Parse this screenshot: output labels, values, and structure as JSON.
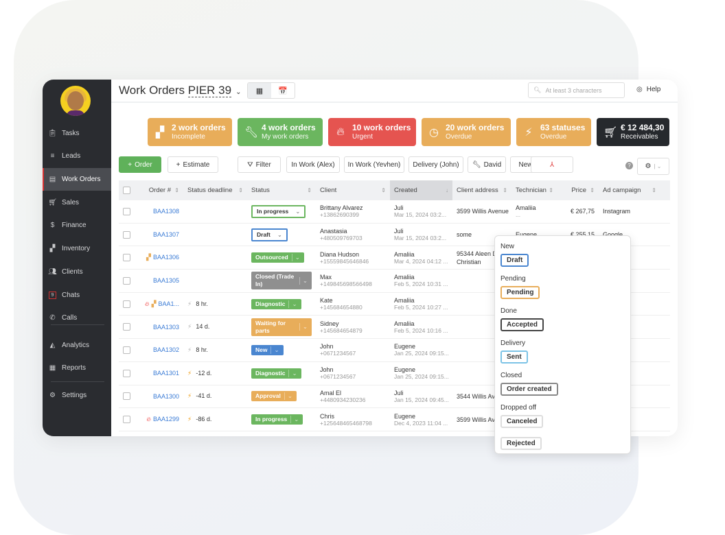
{
  "sidebar": {
    "items": [
      {
        "label": "Tasks",
        "icon": "clipboard-icon"
      },
      {
        "label": "Leads",
        "icon": "filter-icon"
      },
      {
        "label": "Work Orders",
        "icon": "inbox-icon",
        "active": true
      },
      {
        "label": "Sales",
        "icon": "cart-icon"
      },
      {
        "label": "Finance",
        "icon": "dollar-icon"
      },
      {
        "label": "Inventory",
        "icon": "boxes-icon"
      },
      {
        "label": "Clients",
        "icon": "users-icon"
      },
      {
        "label": "Chats",
        "icon": "chat-icon",
        "badge": "9"
      },
      {
        "label": "Calls",
        "icon": "phone-icon"
      },
      {
        "label": "Analytics",
        "icon": "chart-icon"
      },
      {
        "label": "Reports",
        "icon": "table-icon"
      },
      {
        "label": "Settings",
        "icon": "gear-icon"
      }
    ]
  },
  "header": {
    "title": "Work Orders",
    "location": "PIER 39",
    "search_placeholder": "At least 3 characters",
    "help": "Help"
  },
  "kpis": [
    {
      "n": "2 work orders",
      "s": "Incomplete",
      "color": "#e8ad5a",
      "icon": "boxes-icon"
    },
    {
      "n": "4 work orders",
      "s": "My work orders",
      "color": "#6bb65f",
      "icon": "wrench-icon"
    },
    {
      "n": "10 work orders",
      "s": "Urgent",
      "color": "#e55450",
      "icon": "fire-icon"
    },
    {
      "n": "20 work orders",
      "s": "Overdue",
      "color": "#e8ad5a",
      "icon": "clock-icon"
    },
    {
      "n": "63 statuses",
      "s": "Overdue",
      "color": "#e8ad5a",
      "icon": "lightning-icon"
    },
    {
      "n": "€ 12 484,30",
      "s": "Receivables",
      "color": "#26292d",
      "icon": "cart-icon"
    }
  ],
  "toolbar": {
    "order": "Order",
    "estimate": "Estimate",
    "filter": "Filter",
    "filters": [
      "In Work (Alex)",
      "In Work (Yevhen)",
      "Delivery (John)",
      "David",
      "New"
    ]
  },
  "table": {
    "columns": [
      "Order #",
      "Status deadline",
      "Status",
      "Client",
      "Created",
      "Client address",
      "Technician",
      "Price",
      "Ad campaign"
    ],
    "rows": [
      {
        "order": "BAA1308",
        "deadline": "",
        "status": "In progress",
        "style": "outline-green",
        "client": "Brittany Alvarez",
        "phone": "+13862690399",
        "creator": "Juli",
        "date": "Mar 15, 2024 03:2...",
        "address": "3599 Willis Avenue",
        "tech": "Amaliia",
        "tech2": "...",
        "price": "€ 267,75",
        "ad": "Instagram"
      },
      {
        "order": "BAA1307",
        "deadline": "",
        "status": "Draft",
        "style": "outline-blue",
        "client": "Anastasia",
        "phone": "+480509769703",
        "creator": "Juli",
        "date": "Mar 15, 2024 03:2...",
        "address": "some",
        "tech": "Eugene",
        "price": "€ 255,15",
        "ad": "Google"
      },
      {
        "order": "BAA1306",
        "deadline": "",
        "status": "Outsourced",
        "style": "green",
        "client": "Diana Hudson",
        "phone": "+15559845646846",
        "creator": "Amaliia",
        "date": "Mar 4, 2024 04:12 ...",
        "address": "95344 Aleen D New Christian",
        "tech": "",
        "price": "",
        "ad": "",
        "flags": [
          "boxes"
        ]
      },
      {
        "order": "BAA1305",
        "deadline": "",
        "status": "Closed (Trade In)",
        "style": "grey",
        "client": "Max",
        "phone": "+149845698566498",
        "creator": "Amaliia",
        "date": "Feb 5, 2024 10:31 ...",
        "address": "",
        "tech": "",
        "price": "",
        "ad": ""
      },
      {
        "order": "BAA1...",
        "deadline": "8 hr.",
        "bolt": "grey",
        "status": "Diagnostic",
        "style": "green",
        "client": "Kate",
        "phone": "+145684654880",
        "creator": "Amaliia",
        "date": "Feb 5, 2024 10:27 ...",
        "address": "",
        "tech": "",
        "price": "",
        "ad": "",
        "flags": [
          "fire",
          "boxes"
        ]
      },
      {
        "order": "BAA1303",
        "deadline": "14 d.",
        "bolt": "grey",
        "status": "Waiting for parts",
        "style": "orange",
        "client": "Sidney",
        "phone": "+145684654879",
        "creator": "Amaliia",
        "date": "Feb 5, 2024 10:16 ...",
        "address": "",
        "tech": "",
        "price": "",
        "ad": ""
      },
      {
        "order": "BAA1302",
        "deadline": "8 hr.",
        "bolt": "grey",
        "status": "New",
        "style": "blue",
        "client": "John",
        "phone": "+0671234567",
        "creator": "Eugene",
        "date": "Jan 25, 2024 09:15...",
        "address": "",
        "tech": "",
        "price": "",
        "ad": ""
      },
      {
        "order": "BAA1301",
        "deadline": "-12 d.",
        "bolt": "orange",
        "status": "Diagnostic",
        "style": "green",
        "client": "John",
        "phone": "+0671234567",
        "creator": "Eugene",
        "date": "Jan 25, 2024 09:15...",
        "address": "",
        "tech": "",
        "price": "",
        "ad": ""
      },
      {
        "order": "BAA1300",
        "deadline": "-41 d.",
        "bolt": "orange",
        "status": "Approval",
        "style": "orange",
        "client": "Amal El",
        "phone": "+4480934230236",
        "creator": "Juli",
        "date": "Jan 15, 2024 09:45...",
        "address": "3544 Willis Avenue",
        "tech": "",
        "price": "",
        "ad": ""
      },
      {
        "order": "BAA1299",
        "deadline": "-86 d.",
        "bolt": "orange",
        "status": "In progress",
        "style": "green",
        "client": "Chris",
        "phone": "+125648465468798",
        "creator": "Eugene",
        "date": "Dec 4, 2023 11:04 ...",
        "address": "3599 Willis Avenue",
        "tech": "",
        "price": "",
        "ad": "",
        "flags": [
          "fire"
        ]
      }
    ]
  },
  "status_popup": {
    "groups": [
      {
        "label": "New",
        "tags": [
          {
            "t": "Draft",
            "c": "#4a86d0"
          }
        ]
      },
      {
        "label": "Pending",
        "tags": [
          {
            "t": "Pending",
            "c": "#e8ad5a"
          }
        ]
      },
      {
        "label": "Done",
        "tags": [
          {
            "t": "Accepted",
            "c": "#444"
          }
        ]
      },
      {
        "label": "Delivery",
        "tags": [
          {
            "t": "Sent",
            "c": "#7cc3e6"
          }
        ]
      },
      {
        "label": "Closed",
        "tags": [
          {
            "t": "Order created",
            "c": "#888"
          }
        ]
      },
      {
        "label": "Dropped off",
        "tags": [
          {
            "t": "Canceled",
            "c": "#ddd"
          },
          {
            "t": "Rejected",
            "c": "#ddd"
          }
        ]
      }
    ]
  }
}
